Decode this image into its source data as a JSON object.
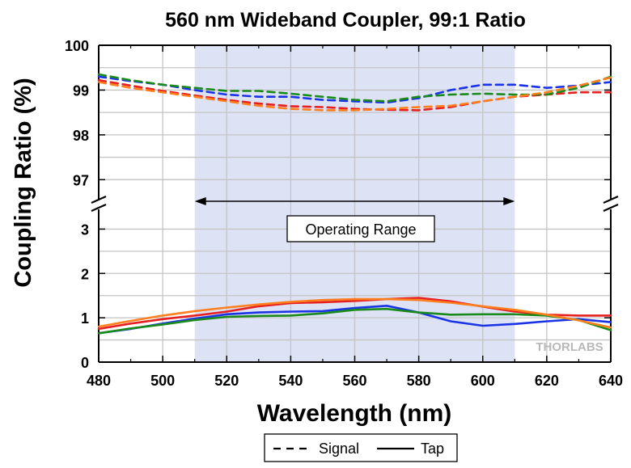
{
  "chart_data": {
    "type": "line",
    "title": "560 nm Wideband Coupler, 99:1 Ratio",
    "xlabel": "Wavelength (nm)",
    "ylabel": "Coupling Ratio (%)",
    "xlim": [
      480,
      640
    ],
    "x_ticks": [
      480,
      500,
      520,
      540,
      560,
      580,
      600,
      620,
      640
    ],
    "upper_panel": {
      "ylim": [
        96.5,
        100
      ],
      "y_ticks": [
        97,
        98,
        99,
        100
      ]
    },
    "lower_panel": {
      "ylim": [
        0,
        3.5
      ],
      "y_ticks": [
        0,
        1,
        2,
        3
      ]
    },
    "axis_break": true,
    "grid": true,
    "operating_range": {
      "x": [
        510,
        610
      ],
      "label": "Operating Range",
      "color": "#dde3f5"
    },
    "watermark": "THORLABS",
    "legend": {
      "placement": "bottom-center",
      "entries": [
        {
          "label": "Signal",
          "style": "dashed"
        },
        {
          "label": "Tap",
          "style": "solid"
        }
      ]
    },
    "series": [
      {
        "group": "Signal",
        "style": "dashed",
        "color": "#1a33e6",
        "x": [
          480,
          490,
          500,
          510,
          520,
          530,
          540,
          550,
          560,
          570,
          580,
          590,
          600,
          610,
          620,
          630,
          640
        ],
        "y": [
          99.3,
          99.2,
          99.12,
          99.0,
          98.9,
          98.85,
          98.85,
          98.78,
          98.75,
          98.72,
          98.82,
          99.0,
          99.12,
          99.12,
          99.05,
          99.1,
          99.18
        ]
      },
      {
        "group": "Signal",
        "style": "dashed",
        "color": "#e62020",
        "x": [
          480,
          490,
          500,
          510,
          520,
          530,
          540,
          550,
          560,
          570,
          580,
          590,
          600,
          610,
          620,
          630,
          640
        ],
        "y": [
          99.22,
          99.1,
          98.98,
          98.88,
          98.78,
          98.7,
          98.64,
          98.62,
          98.58,
          98.56,
          98.55,
          98.62,
          98.75,
          98.85,
          98.9,
          98.95,
          98.95
        ]
      },
      {
        "group": "Signal",
        "style": "dashed",
        "color": "#1a8a1a",
        "x": [
          480,
          490,
          500,
          510,
          520,
          530,
          540,
          550,
          560,
          570,
          580,
          590,
          600,
          610,
          620,
          630,
          640
        ],
        "y": [
          99.35,
          99.22,
          99.12,
          99.05,
          98.98,
          98.98,
          98.92,
          98.85,
          98.78,
          98.75,
          98.85,
          98.9,
          98.92,
          98.9,
          98.9,
          99.05,
          99.3
        ]
      },
      {
        "group": "Signal",
        "style": "dashed",
        "color": "#ff7f1e",
        "x": [
          480,
          490,
          500,
          510,
          520,
          530,
          540,
          550,
          560,
          570,
          580,
          590,
          600,
          610,
          620,
          630,
          640
        ],
        "y": [
          99.18,
          99.05,
          98.95,
          98.85,
          98.75,
          98.65,
          98.58,
          98.55,
          98.55,
          98.58,
          98.62,
          98.65,
          98.75,
          98.85,
          98.95,
          99.1,
          99.28
        ]
      },
      {
        "group": "Tap",
        "style": "solid",
        "color": "#1a33e6",
        "x": [
          480,
          490,
          500,
          510,
          520,
          530,
          540,
          550,
          560,
          570,
          580,
          590,
          600,
          610,
          620,
          630,
          640
        ],
        "y": [
          0.65,
          0.75,
          0.87,
          0.98,
          1.08,
          1.12,
          1.14,
          1.15,
          1.22,
          1.27,
          1.12,
          0.92,
          0.82,
          0.86,
          0.92,
          0.97,
          0.9
        ]
      },
      {
        "group": "Tap",
        "style": "solid",
        "color": "#e62020",
        "x": [
          480,
          490,
          500,
          510,
          520,
          530,
          540,
          550,
          560,
          570,
          580,
          590,
          600,
          610,
          620,
          630,
          640
        ],
        "y": [
          0.75,
          0.87,
          0.97,
          1.05,
          1.14,
          1.26,
          1.33,
          1.35,
          1.38,
          1.42,
          1.45,
          1.37,
          1.25,
          1.14,
          1.07,
          1.05,
          1.05
        ]
      },
      {
        "group": "Tap",
        "style": "solid",
        "color": "#1a8a1a",
        "x": [
          480,
          490,
          500,
          510,
          520,
          530,
          540,
          550,
          560,
          570,
          580,
          590,
          600,
          610,
          620,
          630,
          640
        ],
        "y": [
          0.65,
          0.76,
          0.85,
          0.95,
          1.02,
          1.04,
          1.05,
          1.1,
          1.18,
          1.2,
          1.12,
          1.07,
          1.08,
          1.08,
          1.05,
          0.95,
          0.72
        ]
      },
      {
        "group": "Tap",
        "style": "solid",
        "color": "#ff7f1e",
        "x": [
          480,
          490,
          500,
          510,
          520,
          530,
          540,
          550,
          560,
          570,
          580,
          590,
          600,
          610,
          620,
          630,
          640
        ],
        "y": [
          0.8,
          0.93,
          1.05,
          1.15,
          1.23,
          1.3,
          1.36,
          1.4,
          1.42,
          1.42,
          1.4,
          1.34,
          1.26,
          1.18,
          1.07,
          0.94,
          0.78
        ]
      }
    ]
  }
}
